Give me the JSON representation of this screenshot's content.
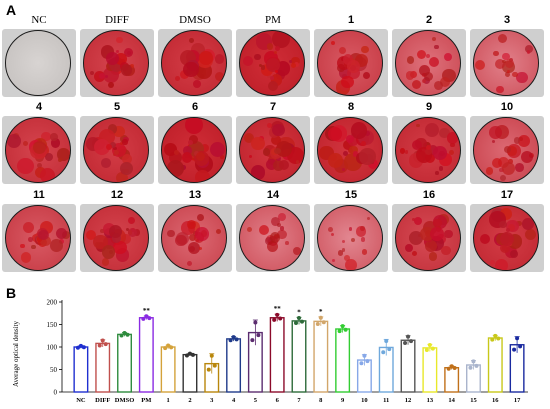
{
  "panel_a": {
    "letter": "A",
    "wells": [
      {
        "label": "NC",
        "stain": 0.0
      },
      {
        "label": "DIFF",
        "stain": 0.75
      },
      {
        "label": "DMSO",
        "stain": 0.8
      },
      {
        "label": "PM",
        "stain": 0.9
      },
      {
        "label": "1",
        "stain": 0.6
      },
      {
        "label": "2",
        "stain": 0.45
      },
      {
        "label": "3",
        "stain": 0.35
      },
      {
        "label": "4",
        "stain": 0.75
      },
      {
        "label": "5",
        "stain": 0.8
      },
      {
        "label": "6",
        "stain": 0.9
      },
      {
        "label": "7",
        "stain": 0.85
      },
      {
        "label": "8",
        "stain": 0.85
      },
      {
        "label": "9",
        "stain": 0.8
      },
      {
        "label": "10",
        "stain": 0.5
      },
      {
        "label": "11",
        "stain": 0.6
      },
      {
        "label": "12",
        "stain": 0.75
      },
      {
        "label": "13",
        "stain": 0.5
      },
      {
        "label": "14",
        "stain": 0.35
      },
      {
        "label": "15",
        "stain": 0.3
      },
      {
        "label": "16",
        "stain": 0.7
      },
      {
        "label": "17",
        "stain": 0.8
      }
    ]
  },
  "chart_data": {
    "panel_letter": "B",
    "type": "bar",
    "title": "",
    "xlabel": "",
    "ylabel": "Average optical density",
    "ylim": [
      0,
      200
    ],
    "yticks": [
      "0",
      "50",
      "100",
      "150",
      "200"
    ],
    "categories": [
      "NC",
      "DIFF",
      "DMSO",
      "PM",
      "1",
      "2",
      "3",
      "4",
      "5",
      "6",
      "7",
      "8",
      "9",
      "10",
      "11",
      "12",
      "13",
      "14",
      "15",
      "16",
      "17"
    ],
    "values": [
      100,
      108,
      128,
      165,
      100,
      83,
      63,
      118,
      132,
      165,
      158,
      157,
      140,
      71,
      99,
      115,
      98,
      54,
      60,
      120,
      105
    ],
    "errors": [
      3,
      8,
      4,
      4,
      4,
      3,
      22,
      5,
      28,
      8,
      8,
      10,
      8,
      12,
      18,
      10,
      8,
      4,
      10,
      6,
      18
    ],
    "significance": [
      "",
      "",
      "",
      "**",
      "",
      "",
      "",
      "",
      "",
      "**",
      "*",
      "*",
      "",
      "",
      "",
      "",
      "",
      "",
      "",
      "",
      ""
    ],
    "colors": [
      "#1f2fd0",
      "#c0504d",
      "#2e8b3d",
      "#8a2be2",
      "#d4a23a",
      "#333333",
      "#b8860b",
      "#1f3a8a",
      "#5b2c6f",
      "#8b0a2a",
      "#2e6b3a",
      "#d2a66a",
      "#32cd32",
      "#87a8e8",
      "#6fa8dc",
      "#555555",
      "#e8e82a",
      "#c0701a",
      "#a9b4cc",
      "#c8c81a",
      "#1a2aa0"
    ],
    "fills": [
      "#ffffff",
      "#ffffff",
      "#ffffff",
      "#ffffff",
      "#ffffff",
      "#ffffff",
      "#ffffff",
      "#ffffff",
      "#ffffff",
      "#ffffff",
      "#ffffff",
      "#ffffff",
      "#ffffff",
      "#ffffff",
      "#ffffff",
      "#ffffff",
      "#ffffff",
      "#ffffff",
      "#ffffff",
      "#ffffff",
      "#ffffff"
    ],
    "grid": false,
    "legend": "none"
  }
}
